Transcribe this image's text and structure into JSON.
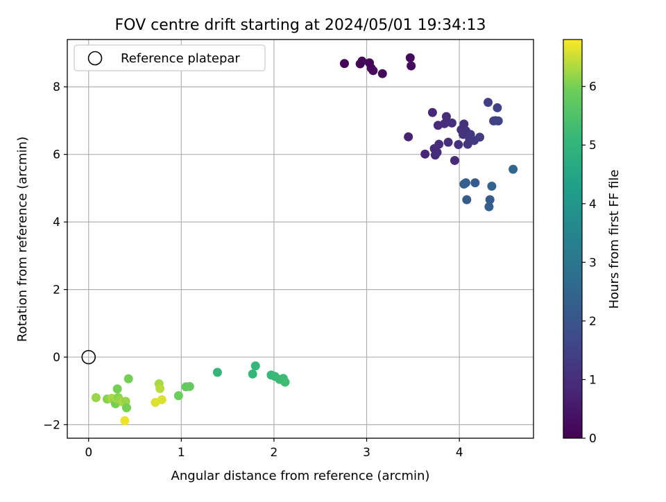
{
  "chart_data": {
    "type": "scatter",
    "title": "FOV centre drift starting at 2024/05/01 19:34:13",
    "xlabel": "Angular distance from reference (arcmin)",
    "ylabel": "Rotation from reference (arcmin)",
    "xlim": [
      -0.23,
      4.8
    ],
    "ylim": [
      -2.4,
      9.4
    ],
    "xticks": [
      0,
      1,
      2,
      3,
      4
    ],
    "yticks": [
      -2,
      0,
      2,
      4,
      6,
      8
    ],
    "xtick_labels": [
      "0",
      "1",
      "2",
      "3",
      "4"
    ],
    "ytick_labels": [
      "−2",
      "0",
      "2",
      "4",
      "6",
      "8"
    ],
    "grid": true,
    "legend": {
      "placement": "top-left",
      "entries": [
        "Reference platepar"
      ]
    },
    "colorbar": {
      "label": "Hours from first FF file",
      "colormap": "viridis",
      "range": [
        0,
        6.8
      ],
      "ticks": [
        0,
        1,
        2,
        3,
        4,
        5,
        6
      ],
      "tick_labels": [
        "0",
        "1",
        "2",
        "3",
        "4",
        "5",
        "6"
      ]
    },
    "reference_point": {
      "x": 0,
      "y": 0
    },
    "series": [
      {
        "points": [
          {
            "x": 2.76,
            "y": 8.69,
            "c": 0.05
          },
          {
            "x": 2.93,
            "y": 8.68,
            "c": 0.08
          },
          {
            "x": 2.95,
            "y": 8.76,
            "c": 0.1
          },
          {
            "x": 3.03,
            "y": 8.71,
            "c": 0.12
          },
          {
            "x": 3.05,
            "y": 8.55,
            "c": 0.14
          },
          {
            "x": 3.07,
            "y": 8.48,
            "c": 0.16
          },
          {
            "x": 3.17,
            "y": 8.39,
            "c": 0.18
          },
          {
            "x": 3.47,
            "y": 8.86,
            "c": 0.2
          },
          {
            "x": 3.48,
            "y": 8.62,
            "c": 0.22
          },
          {
            "x": 3.45,
            "y": 6.52,
            "c": 0.7
          },
          {
            "x": 3.63,
            "y": 6.01,
            "c": 0.8
          },
          {
            "x": 3.71,
            "y": 7.24,
            "c": 0.85
          },
          {
            "x": 3.73,
            "y": 6.17,
            "c": 0.9
          },
          {
            "x": 3.74,
            "y": 5.98,
            "c": 0.9
          },
          {
            "x": 3.76,
            "y": 6.06,
            "c": 0.95
          },
          {
            "x": 3.77,
            "y": 6.86,
            "c": 0.95
          },
          {
            "x": 3.78,
            "y": 6.3,
            "c": 1.0
          },
          {
            "x": 3.84,
            "y": 6.91,
            "c": 1.0
          },
          {
            "x": 3.86,
            "y": 7.12,
            "c": 1.0
          },
          {
            "x": 3.88,
            "y": 6.36,
            "c": 1.0
          },
          {
            "x": 3.92,
            "y": 6.93,
            "c": 1.05
          },
          {
            "x": 3.95,
            "y": 5.82,
            "c": 0.95
          },
          {
            "x": 3.99,
            "y": 6.29,
            "c": 1.1
          },
          {
            "x": 4.02,
            "y": 6.73,
            "c": 1.1
          },
          {
            "x": 4.04,
            "y": 6.59,
            "c": 1.15
          },
          {
            "x": 4.05,
            "y": 6.9,
            "c": 1.1
          },
          {
            "x": 4.07,
            "y": 6.7,
            "c": 1.15
          },
          {
            "x": 4.09,
            "y": 6.3,
            "c": 1.2
          },
          {
            "x": 4.11,
            "y": 6.46,
            "c": 1.2
          },
          {
            "x": 4.12,
            "y": 6.59,
            "c": 1.25
          },
          {
            "x": 4.16,
            "y": 6.41,
            "c": 1.3
          },
          {
            "x": 4.22,
            "y": 6.51,
            "c": 1.35
          },
          {
            "x": 4.31,
            "y": 7.54,
            "c": 1.4
          },
          {
            "x": 4.37,
            "y": 6.99,
            "c": 1.45
          },
          {
            "x": 4.39,
            "y": 7.0,
            "c": 1.45
          },
          {
            "x": 4.41,
            "y": 7.38,
            "c": 1.5
          },
          {
            "x": 4.42,
            "y": 6.99,
            "c": 1.5
          },
          {
            "x": 4.05,
            "y": 5.12,
            "c": 2.3
          },
          {
            "x": 4.07,
            "y": 5.16,
            "c": 2.3
          },
          {
            "x": 4.08,
            "y": 4.66,
            "c": 2.2
          },
          {
            "x": 4.17,
            "y": 5.16,
            "c": 2.2
          },
          {
            "x": 4.32,
            "y": 4.45,
            "c": 2.3
          },
          {
            "x": 4.33,
            "y": 4.66,
            "c": 2.2
          },
          {
            "x": 4.35,
            "y": 5.06,
            "c": 2.4
          },
          {
            "x": 4.58,
            "y": 5.56,
            "c": 2.5
          },
          {
            "x": 1.39,
            "y": -0.45,
            "c": 5.05
          },
          {
            "x": 1.77,
            "y": -0.5,
            "c": 5.1
          },
          {
            "x": 1.8,
            "y": -0.26,
            "c": 5.1
          },
          {
            "x": 1.97,
            "y": -0.53,
            "c": 5.15
          },
          {
            "x": 2.01,
            "y": -0.57,
            "c": 5.15
          },
          {
            "x": 2.06,
            "y": -0.66,
            "c": 5.2
          },
          {
            "x": 2.1,
            "y": -0.63,
            "c": 5.2
          },
          {
            "x": 2.11,
            "y": -0.71,
            "c": 5.2
          },
          {
            "x": 2.12,
            "y": -0.74,
            "c": 5.25
          },
          {
            "x": 0.97,
            "y": -1.14,
            "c": 5.9
          },
          {
            "x": 1.05,
            "y": -0.88,
            "c": 5.8
          },
          {
            "x": 1.09,
            "y": -0.87,
            "c": 5.8
          },
          {
            "x": 0.08,
            "y": -1.2,
            "c": 6.2
          },
          {
            "x": 0.2,
            "y": -1.24,
            "c": 6.1
          },
          {
            "x": 0.25,
            "y": -1.22,
            "c": 6.3
          },
          {
            "x": 0.28,
            "y": -1.3,
            "c": 6.2
          },
          {
            "x": 0.29,
            "y": -1.38,
            "c": 6.0
          },
          {
            "x": 0.3,
            "y": -1.22,
            "c": 6.3
          },
          {
            "x": 0.31,
            "y": -0.94,
            "c": 6.0
          },
          {
            "x": 0.32,
            "y": -1.2,
            "c": 6.1
          },
          {
            "x": 0.34,
            "y": -1.28,
            "c": 6.2
          },
          {
            "x": 0.37,
            "y": -1.33,
            "c": 6.3
          },
          {
            "x": 0.4,
            "y": -1.31,
            "c": 6.2
          },
          {
            "x": 0.41,
            "y": -1.5,
            "c": 6.0
          },
          {
            "x": 0.43,
            "y": -0.64,
            "c": 6.0
          },
          {
            "x": 0.39,
            "y": -1.88,
            "c": 6.7
          },
          {
            "x": 0.72,
            "y": -1.34,
            "c": 6.6
          },
          {
            "x": 0.76,
            "y": -0.79,
            "c": 6.3
          },
          {
            "x": 0.77,
            "y": -0.93,
            "c": 6.4
          },
          {
            "x": 0.79,
            "y": -1.26,
            "c": 6.6
          }
        ]
      }
    ]
  }
}
